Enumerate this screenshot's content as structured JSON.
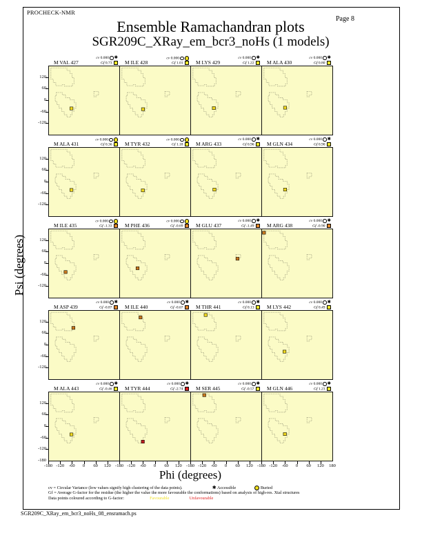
{
  "page": {
    "app": "PROCHECK-NMR",
    "page_label": "Page 8",
    "title": "Ensemble Ramachandran plots",
    "subtitle": "SGR209C_XRay_em_bcr3_noHs (1 models)",
    "footer_file": "SGR209C_XRay_em_bcr3_noHs_08_ensramach.ps"
  },
  "axes": {
    "xlabel": "Phi (degrees)",
    "ylabel": "Psi (degrees)",
    "x_ticks": [
      -180,
      -120,
      -60,
      0,
      60,
      120
    ],
    "x_end_tick": 180,
    "y_ticks": [
      120,
      60,
      0,
      -60,
      -120
    ],
    "y_end_tick": -180,
    "x_range": [
      -180,
      180
    ],
    "y_range": [
      -180,
      180
    ]
  },
  "legend": {
    "cv_text": "cv = Circular Variance (low values signify high clustering of the data points).",
    "accessible_icon": "star-icon",
    "accessible_label": "Accessible",
    "buried_icon": "buried-icon",
    "buried_label": "Buried",
    "gf_text": "Gf = Average G-factor for the residue (the higher the value the more favourable the conformations)  based on analysis of high-res. Xtal structures",
    "points_prefix": "Data points coloured according to G-factor:",
    "favourable_label": "Favourable",
    "unfavourable_label": "Unfavourable"
  },
  "colors": {
    "plot_bg": "#FBFBC6",
    "region_line": "#98987A",
    "point_yellow": "#EFD71F",
    "point_orange": "#C8781E",
    "point_red": "#BE1E1E",
    "gf_yellow": "#F0E828",
    "gf_orange": "#E0862C",
    "gf_red": "#DC1E1E",
    "buried_fill": "#F0E020"
  },
  "chart_data": {
    "type": "scatter",
    "grid": {
      "cols": 4,
      "rows": 5
    },
    "cv_label": "cv",
    "gf_label": "Gf",
    "regions": {
      "beta": [
        [
          -170,
          172
        ],
        [
          -88,
          172
        ],
        [
          -88,
          158
        ],
        [
          -72,
          158
        ],
        [
          -72,
          142
        ],
        [
          -62,
          142
        ],
        [
          -62,
          120
        ],
        [
          -52,
          120
        ],
        [
          -52,
          88
        ],
        [
          -60,
          88
        ],
        [
          -60,
          75
        ],
        [
          -100,
          75
        ],
        [
          -100,
          83
        ],
        [
          -112,
          83
        ],
        [
          -112,
          78
        ],
        [
          -145,
          78
        ],
        [
          -145,
          95
        ],
        [
          -158,
          95
        ],
        [
          -158,
          112
        ],
        [
          -170,
          112
        ]
      ],
      "alpha": [
        [
          -142,
          42
        ],
        [
          -112,
          42
        ],
        [
          -112,
          30
        ],
        [
          -95,
          30
        ],
        [
          -95,
          15
        ],
        [
          -72,
          15
        ],
        [
          -72,
          3
        ],
        [
          -50,
          3
        ],
        [
          -50,
          -12
        ],
        [
          -42,
          -12
        ],
        [
          -42,
          -40
        ],
        [
          -52,
          -40
        ],
        [
          -52,
          -58
        ],
        [
          -62,
          -58
        ],
        [
          -62,
          -75
        ],
        [
          -70,
          -75
        ],
        [
          -70,
          -88
        ],
        [
          -88,
          -88
        ],
        [
          -88,
          -75
        ],
        [
          -102,
          -75
        ],
        [
          -102,
          -58
        ],
        [
          -115,
          -58
        ],
        [
          -115,
          -40
        ],
        [
          -128,
          -40
        ],
        [
          -128,
          -22
        ],
        [
          -140,
          -22
        ],
        [
          -140,
          -5
        ],
        [
          -148,
          -5
        ],
        [
          -148,
          25
        ],
        [
          -142,
          25
        ]
      ],
      "left_handed_alpha": [
        [
          50,
          48
        ],
        [
          74,
          48
        ],
        [
          74,
          28
        ],
        [
          62,
          28
        ],
        [
          62,
          20
        ],
        [
          50,
          20
        ]
      ]
    },
    "plots": [
      {
        "label": "M VAL 427",
        "cv": "0.000",
        "gf": "0.73",
        "gf_color": "yellow",
        "burial": "accessible",
        "point": {
          "phi": -65,
          "psi": -42,
          "color": "yellow"
        }
      },
      {
        "label": "M ILE 428",
        "cv": "0.000",
        "gf": "1.01",
        "gf_color": "yellow",
        "burial": "buried",
        "point": {
          "phi": -62,
          "psi": -46,
          "color": "yellow"
        }
      },
      {
        "label": "M LYS 429",
        "cv": "0.000",
        "gf": "1.22",
        "gf_color": "yellow",
        "burial": "accessible",
        "point": {
          "phi": -63,
          "psi": -40,
          "color": "yellow"
        }
      },
      {
        "label": "M ALA 430",
        "cv": "0.000",
        "gf": "0.80",
        "gf_color": "yellow",
        "burial": "accessible",
        "point": {
          "phi": -62,
          "psi": -38,
          "color": "yellow"
        }
      },
      {
        "label": "M ALA 431",
        "cv": "0.000",
        "gf": "0.36",
        "gf_color": "yellow",
        "burial": "buried",
        "point": {
          "phi": -65,
          "psi": -42,
          "color": "yellow"
        }
      },
      {
        "label": "M TYR 432",
        "cv": "0.000",
        "gf": "1.18",
        "gf_color": "yellow",
        "burial": "buried",
        "point": {
          "phi": -63,
          "psi": -44,
          "color": "yellow"
        }
      },
      {
        "label": "M ARG 433",
        "cv": "0.000",
        "gf": "0.96",
        "gf_color": "yellow",
        "burial": "accessible",
        "point": {
          "phi": -60,
          "psi": -40,
          "color": "yellow"
        }
      },
      {
        "label": "M GLN 434",
        "cv": "0.000",
        "gf": "0.90",
        "gf_color": "yellow",
        "burial": "accessible",
        "point": {
          "phi": -62,
          "psi": -40,
          "color": "yellow"
        }
      },
      {
        "label": "M ILE 435",
        "cv": "0.000",
        "gf": "-1.33",
        "gf_color": "orange",
        "burial": "buried",
        "point": {
          "phi": -95,
          "psi": -45,
          "color": "orange"
        }
      },
      {
        "label": "M PHE 436",
        "cv": "0.000",
        "gf": "-0.69",
        "gf_color": "orange",
        "burial": "buried",
        "point": {
          "phi": -90,
          "psi": -25,
          "color": "orange"
        }
      },
      {
        "label": "M GLU 437",
        "cv": "0.000",
        "gf": "-1.49",
        "gf_color": "orange",
        "burial": "accessible",
        "point": {
          "phi": 58,
          "psi": 25,
          "color": "orange"
        }
      },
      {
        "label": "M ARG 438",
        "cv": "0.000",
        "gf": "-0.90",
        "gf_color": "orange",
        "burial": "accessible",
        "point": {
          "phi": -170,
          "psi": 162,
          "color": "orange"
        }
      },
      {
        "label": "M ASP 439",
        "cv": "0.000",
        "gf": "-0.87",
        "gf_color": "orange",
        "burial": "accessible",
        "point": {
          "phi": -55,
          "psi": 90,
          "color": "orange"
        }
      },
      {
        "label": "M ILE 440",
        "cv": "0.000",
        "gf": "-0.67",
        "gf_color": "orange",
        "burial": "accessible",
        "point": {
          "phi": -75,
          "psi": 145,
          "color": "orange"
        }
      },
      {
        "label": "M THR 441",
        "cv": "0.000",
        "gf": "0.13",
        "gf_color": "yellow",
        "burial": "accessible",
        "point": {
          "phi": -105,
          "psi": 158,
          "color": "yellow"
        }
      },
      {
        "label": "M LYS 442",
        "cv": "0.000",
        "gf": "0.49",
        "gf_color": "yellow",
        "burial": "accessible",
        "point": {
          "phi": -65,
          "psi": -35,
          "color": "yellow"
        }
      },
      {
        "label": "M ALA 443",
        "cv": "0.000",
        "gf": "-0.46",
        "gf_color": "yellow",
        "burial": "accessible",
        "point": {
          "phi": -65,
          "psi": -42,
          "color": "yellow"
        }
      },
      {
        "label": "M TYR 444",
        "cv": "0.000",
        "gf": "-2.74",
        "gf_color": "red",
        "burial": "accessible",
        "point": {
          "phi": -63,
          "psi": -80,
          "color": "red"
        }
      },
      {
        "label": "M SER 445",
        "cv": "0.000",
        "gf": "-0.57",
        "gf_color": "yellow",
        "burial": "accessible",
        "point": {
          "phi": -112,
          "psi": 165,
          "color": "orange"
        }
      },
      {
        "label": "M GLN 446",
        "cv": "0.000",
        "gf": "1.23",
        "gf_color": "yellow",
        "burial": "accessible",
        "point": {
          "phi": -63,
          "psi": -40,
          "color": "yellow"
        }
      }
    ]
  }
}
